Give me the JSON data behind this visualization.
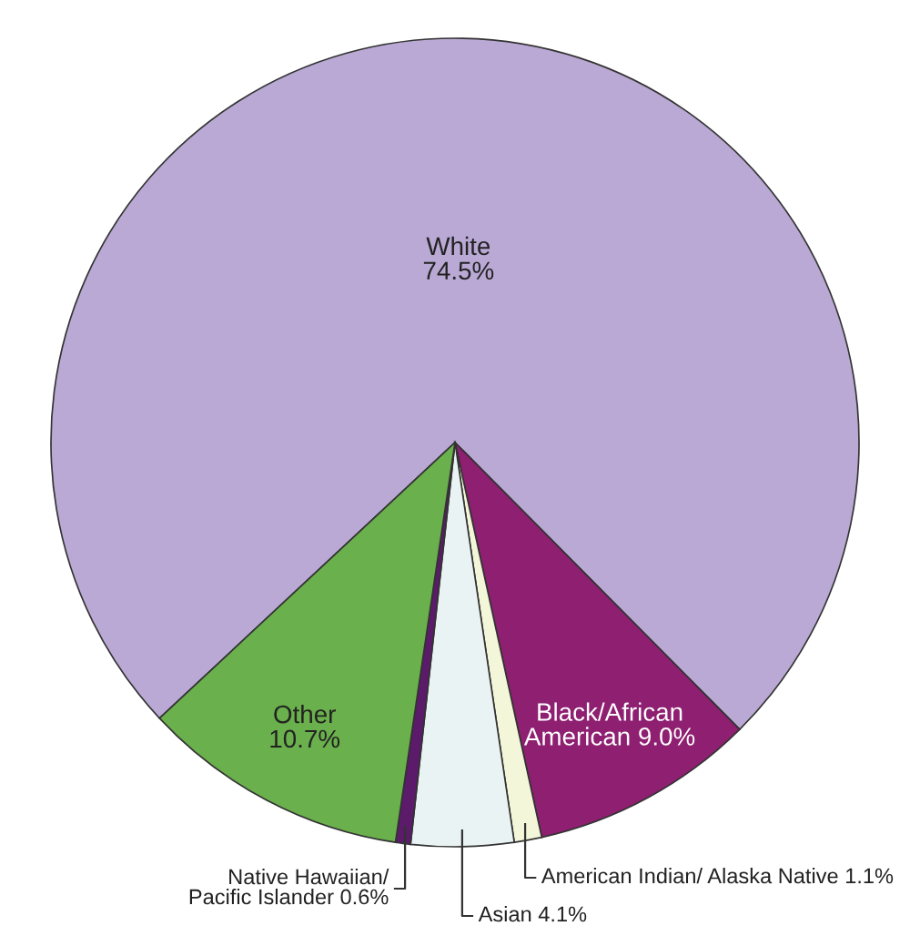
{
  "chart_data": {
    "type": "pie",
    "categories": [
      "White",
      "Black/African\nAmerican",
      "American Indian/ Alaska Native",
      "Asian",
      "Native Hawaiian/\nPacific Islander",
      "Other"
    ],
    "values": [
      74.5,
      9.0,
      1.1,
      4.1,
      0.6,
      10.7
    ],
    "colors": [
      "#b9a9d4",
      "#8e1f71",
      "#f3f6d8",
      "#eaf3f3",
      "#5c1a6a",
      "#6ab04c"
    ],
    "value_labels": [
      "74.5%",
      "9.0%",
      "1.1%",
      "4.1%",
      "0.6%",
      "10.7%"
    ]
  }
}
